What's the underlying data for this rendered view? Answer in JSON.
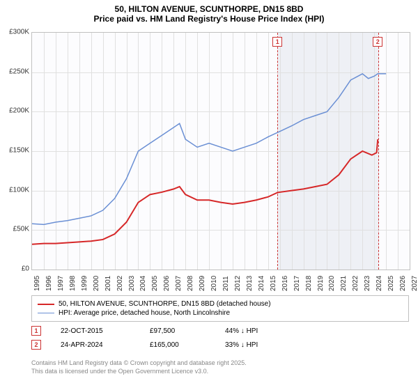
{
  "title": {
    "line1": "50, HILTON AVENUE, SCUNTHORPE, DN15 8BD",
    "line2": "Price paid vs. HM Land Registry's House Price Index (HPI)"
  },
  "chart": {
    "type": "line",
    "background_color": "#fcfcfe",
    "grid_color": "#e0e0e0",
    "border_color": "#c0c0c0",
    "shaded_color": "#eef0f5",
    "marker_border_color": "#cc3333",
    "ylim": [
      0,
      300000
    ],
    "yticks": [
      0,
      50000,
      100000,
      150000,
      200000,
      250000,
      300000
    ],
    "ytick_labels": [
      "£0",
      "£50K",
      "£100K",
      "£150K",
      "£200K",
      "£250K",
      "£300K"
    ],
    "xlim": [
      1995,
      2027
    ],
    "xticks": [
      1995,
      1996,
      1997,
      1998,
      1999,
      2000,
      2001,
      2002,
      2003,
      2004,
      2005,
      2006,
      2007,
      2008,
      2009,
      2010,
      2011,
      2012,
      2013,
      2014,
      2015,
      2016,
      2017,
      2018,
      2019,
      2020,
      2021,
      2022,
      2023,
      2024,
      2025,
      2026,
      2027
    ],
    "shaded_start": 2015.8,
    "shaded_end": 2024.3,
    "label_fontsize": 10,
    "series": [
      {
        "name": "price_paid",
        "color": "#d62728",
        "line_width": 2,
        "points": [
          [
            1995,
            32000
          ],
          [
            1996,
            33000
          ],
          [
            1997,
            33000
          ],
          [
            1998,
            34000
          ],
          [
            1999,
            35000
          ],
          [
            2000,
            36000
          ],
          [
            2001,
            38000
          ],
          [
            2002,
            45000
          ],
          [
            2003,
            60000
          ],
          [
            2004,
            85000
          ],
          [
            2005,
            95000
          ],
          [
            2006,
            98000
          ],
          [
            2007,
            102000
          ],
          [
            2007.5,
            105000
          ],
          [
            2008,
            95000
          ],
          [
            2009,
            88000
          ],
          [
            2010,
            88000
          ],
          [
            2011,
            85000
          ],
          [
            2012,
            83000
          ],
          [
            2013,
            85000
          ],
          [
            2014,
            88000
          ],
          [
            2015,
            92000
          ],
          [
            2015.8,
            97500
          ],
          [
            2016,
            98000
          ],
          [
            2017,
            100000
          ],
          [
            2018,
            102000
          ],
          [
            2019,
            105000
          ],
          [
            2020,
            108000
          ],
          [
            2021,
            120000
          ],
          [
            2022,
            140000
          ],
          [
            2023,
            150000
          ],
          [
            2023.8,
            145000
          ],
          [
            2024.2,
            148000
          ],
          [
            2024.3,
            165000
          ]
        ]
      },
      {
        "name": "hpi",
        "color": "#6a8fd4",
        "line_width": 1.5,
        "points": [
          [
            1995,
            58000
          ],
          [
            1996,
            57000
          ],
          [
            1997,
            60000
          ],
          [
            1998,
            62000
          ],
          [
            1999,
            65000
          ],
          [
            2000,
            68000
          ],
          [
            2001,
            75000
          ],
          [
            2002,
            90000
          ],
          [
            2003,
            115000
          ],
          [
            2004,
            150000
          ],
          [
            2005,
            160000
          ],
          [
            2006,
            170000
          ],
          [
            2007,
            180000
          ],
          [
            2007.5,
            185000
          ],
          [
            2008,
            165000
          ],
          [
            2009,
            155000
          ],
          [
            2010,
            160000
          ],
          [
            2011,
            155000
          ],
          [
            2012,
            150000
          ],
          [
            2013,
            155000
          ],
          [
            2014,
            160000
          ],
          [
            2015,
            168000
          ],
          [
            2016,
            175000
          ],
          [
            2017,
            182000
          ],
          [
            2018,
            190000
          ],
          [
            2019,
            195000
          ],
          [
            2020,
            200000
          ],
          [
            2021,
            218000
          ],
          [
            2022,
            240000
          ],
          [
            2023,
            248000
          ],
          [
            2023.5,
            242000
          ],
          [
            2024,
            245000
          ],
          [
            2024.3,
            248000
          ],
          [
            2025,
            248000
          ]
        ]
      }
    ],
    "markers": [
      {
        "num": "1",
        "x": 2015.8,
        "y_above": true
      },
      {
        "num": "2",
        "x": 2024.3,
        "y_above": true
      }
    ]
  },
  "legend": {
    "items": [
      {
        "color": "#d62728",
        "width": 2,
        "label": "50, HILTON AVENUE, SCUNTHORPE, DN15 8BD (detached house)"
      },
      {
        "color": "#6a8fd4",
        "width": 1.5,
        "label": "HPI: Average price, detached house, North Lincolnshire"
      }
    ]
  },
  "info_rows": [
    {
      "num": "1",
      "date": "22-OCT-2015",
      "price": "£97,500",
      "pct": "44% ↓ HPI"
    },
    {
      "num": "2",
      "date": "24-APR-2024",
      "price": "£165,000",
      "pct": "33% ↓ HPI"
    }
  ],
  "footer": {
    "line1": "Contains HM Land Registry data © Crown copyright and database right 2025.",
    "line2": "This data is licensed under the Open Government Licence v3.0."
  }
}
